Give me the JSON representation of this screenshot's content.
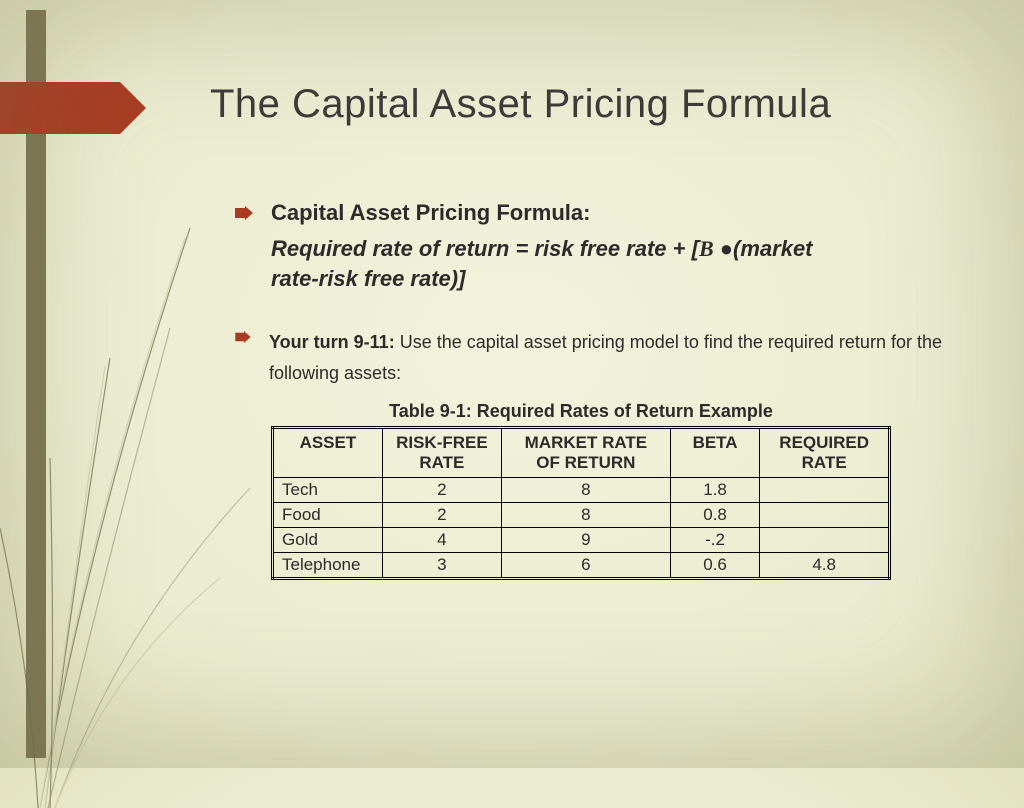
{
  "colors": {
    "accent": "#a83c23",
    "sidebar": "#7d7655",
    "text": "#2b2b2b",
    "title": "#3a3a3a",
    "table_border": "#000000"
  },
  "title": "The Capital Asset Pricing Formula",
  "heading": "Capital Asset Pricing Formula:",
  "formula_line1": "Required rate of return = risk free rate + [",
  "formula_beta": "B",
  "formula_line1b": " ●(market",
  "formula_line2": "rate-risk free rate)]",
  "yourturn_label": "Your turn 9-11:",
  "yourturn_text": "  Use the capital asset pricing model to find the required return for the following assets:",
  "table": {
    "title": "Table 9-1: Required Rates of Return Example",
    "columns": [
      "ASSET",
      "RISK-FREE RATE",
      "MARKET RATE OF RETURN",
      "BETA",
      "REQUIRED RATE"
    ],
    "rows": [
      [
        "Tech",
        "2",
        "8",
        "1.8",
        ""
      ],
      [
        "Food",
        "2",
        "8",
        "0.8",
        ""
      ],
      [
        "Gold",
        "4",
        "9",
        "-.2",
        ""
      ],
      [
        "Telephone",
        "3",
        "6",
        "0.6",
        "4.8"
      ]
    ],
    "col_align": [
      "left",
      "center",
      "center",
      "center",
      "center"
    ]
  }
}
